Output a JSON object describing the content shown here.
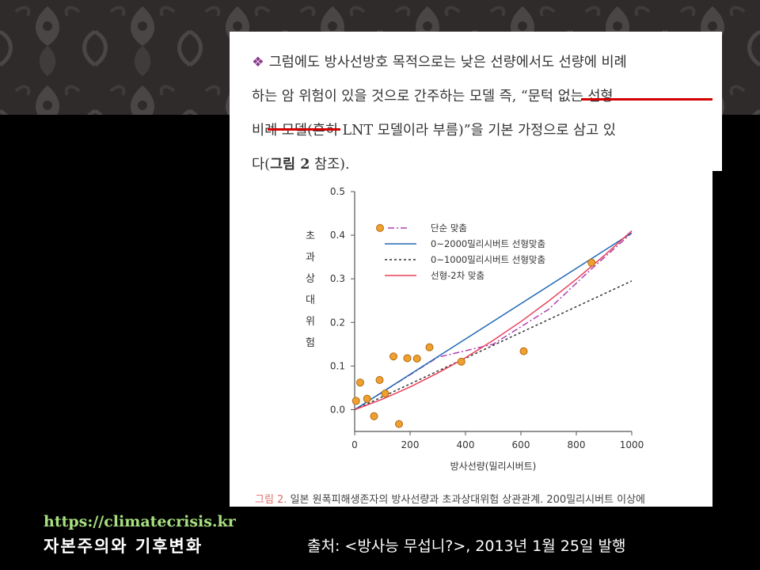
{
  "text": {
    "line1": "그럼에도 방사선방호 목적으로는 낮은 선량에서도 선량에 비례",
    "line2": "하는 암 위험이 있을 것으로 간주하는 모델 즉, “문턱 없는 선형",
    "line3": "비례 모델(흔히 LNT 모델이라 부름)”을 기본 가정으로 삼고 있",
    "line4a": "다(",
    "line4b": "그림 2",
    "line4c": " 참조).",
    "highlight_color": "#d40000"
  },
  "caption": {
    "fig": "그림 2.",
    "text": " 일본 원폭피해생존자의 방사선량과 초과상대위험 상관관계. 200밀리시버트 이상에"
  },
  "footer": {
    "url": "https://climatecrisis.kr",
    "subtitle": "자본주의와 기후변화",
    "source": "출처: <방사능 무섭니?>, 2013년 1월 25일 발행"
  },
  "chart_data": {
    "type": "scatter",
    "xlabel": "방사선량(밀리시버트)",
    "ylabel": "초과상대위험",
    "xlim": [
      0,
      1000
    ],
    "ylim": [
      -0.05,
      0.5
    ],
    "xticks": [
      0,
      200,
      400,
      600,
      800,
      1000
    ],
    "yticks": [
      0.0,
      0.1,
      0.2,
      0.3,
      0.4,
      0.5
    ],
    "grid": false,
    "legend_position": "top-left",
    "points": {
      "color": "#f0a030",
      "x": [
        5,
        20,
        45,
        70,
        90,
        110,
        140,
        160,
        190,
        225,
        270,
        385,
        610,
        855
      ],
      "y": [
        0.02,
        0.062,
        0.025,
        -0.015,
        0.068,
        0.037,
        0.122,
        -0.033,
        0.118,
        0.117,
        0.143,
        0.11,
        0.134,
        0.337
      ]
    },
    "series": [
      {
        "name": "단순 맞춤",
        "kind": "scatter",
        "color": "#f0a030",
        "line_color": "#b040b0",
        "dash": "8,3,2,3",
        "x": [
          0,
          150,
          300,
          500,
          700,
          850,
          1000
        ],
        "y": [
          0.0,
          0.06,
          0.12,
          0.15,
          0.23,
          0.32,
          0.405
        ]
      },
      {
        "name": "0~2000밀리시버트 선형맞춤",
        "color": "#1f68b4",
        "dash": "",
        "x": [
          0,
          1000
        ],
        "y": [
          0.0,
          0.405
        ]
      },
      {
        "name": "0~1000밀리시버트 선형맞춤",
        "color": "#333333",
        "dash": "3,3",
        "x": [
          0,
          1000
        ],
        "y": [
          0.0,
          0.295
        ]
      },
      {
        "name": "선형-2차 맞춤",
        "color": "#e8405a",
        "dash": "",
        "x": [
          0,
          100,
          200,
          300,
          400,
          500,
          600,
          700,
          800,
          900,
          1000
        ],
        "y": [
          0.0,
          0.024,
          0.052,
          0.084,
          0.119,
          0.159,
          0.202,
          0.249,
          0.299,
          0.353,
          0.41
        ]
      }
    ]
  }
}
